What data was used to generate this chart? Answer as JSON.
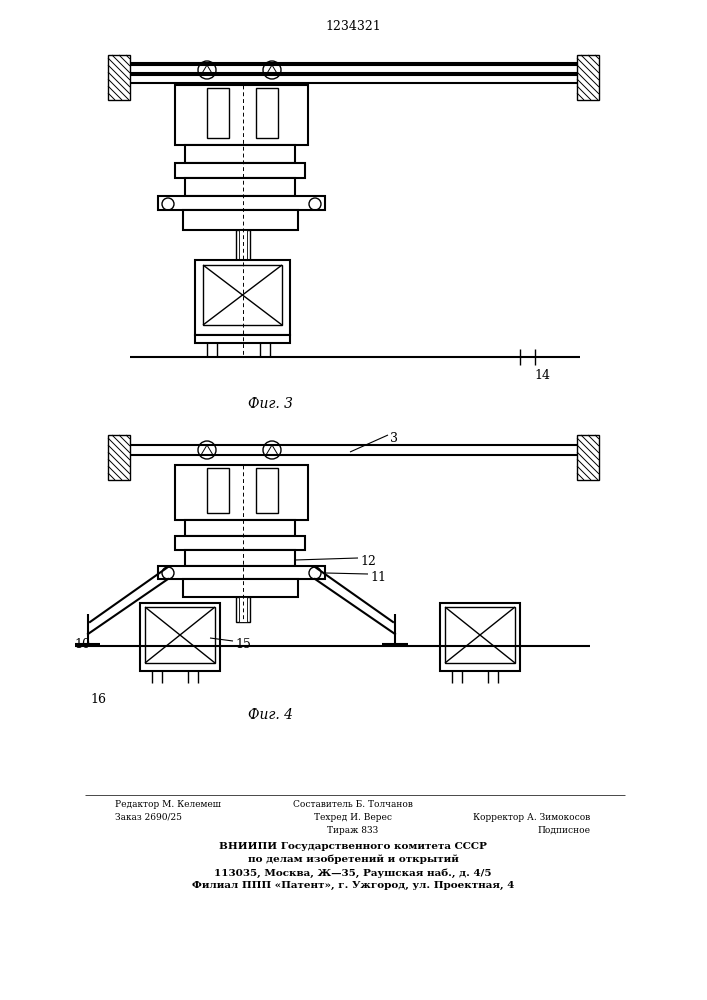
{
  "patent_number": "1234321",
  "fig3_label": "Фиг. 3",
  "fig4_label": "Фиг. 4",
  "label_14": "14",
  "label_3": "3",
  "label_10": "10",
  "label_11": "11",
  "label_12": "12",
  "label_15": "15",
  "label_16": "16",
  "footer_line1_left": "Редактор М. Келемеш",
  "footer_line2_left": "Заказ 2690/25",
  "footer_line1_center": "Составитель Б. Толчанов",
  "footer_line2_center": "Техред И. Верес",
  "footer_line3_center": "Тираж 833",
  "footer_line2_right": "Корректор А. Зимокосов",
  "footer_line3_right": "Подписное",
  "footer_vnipi": "ВНИИПИ Государственного комитета СССР",
  "footer_vnipi2": "по делам изобретений и открытий",
  "footer_vnipi3": "113035, Москва, Ж—35, Раушская наб., д. 4/5",
  "footer_vnipi4": "Филиал ППП «Патент», г. Ужгород, ул. Проектная, 4",
  "line_color": "#000000",
  "bg_color": "#ffffff"
}
